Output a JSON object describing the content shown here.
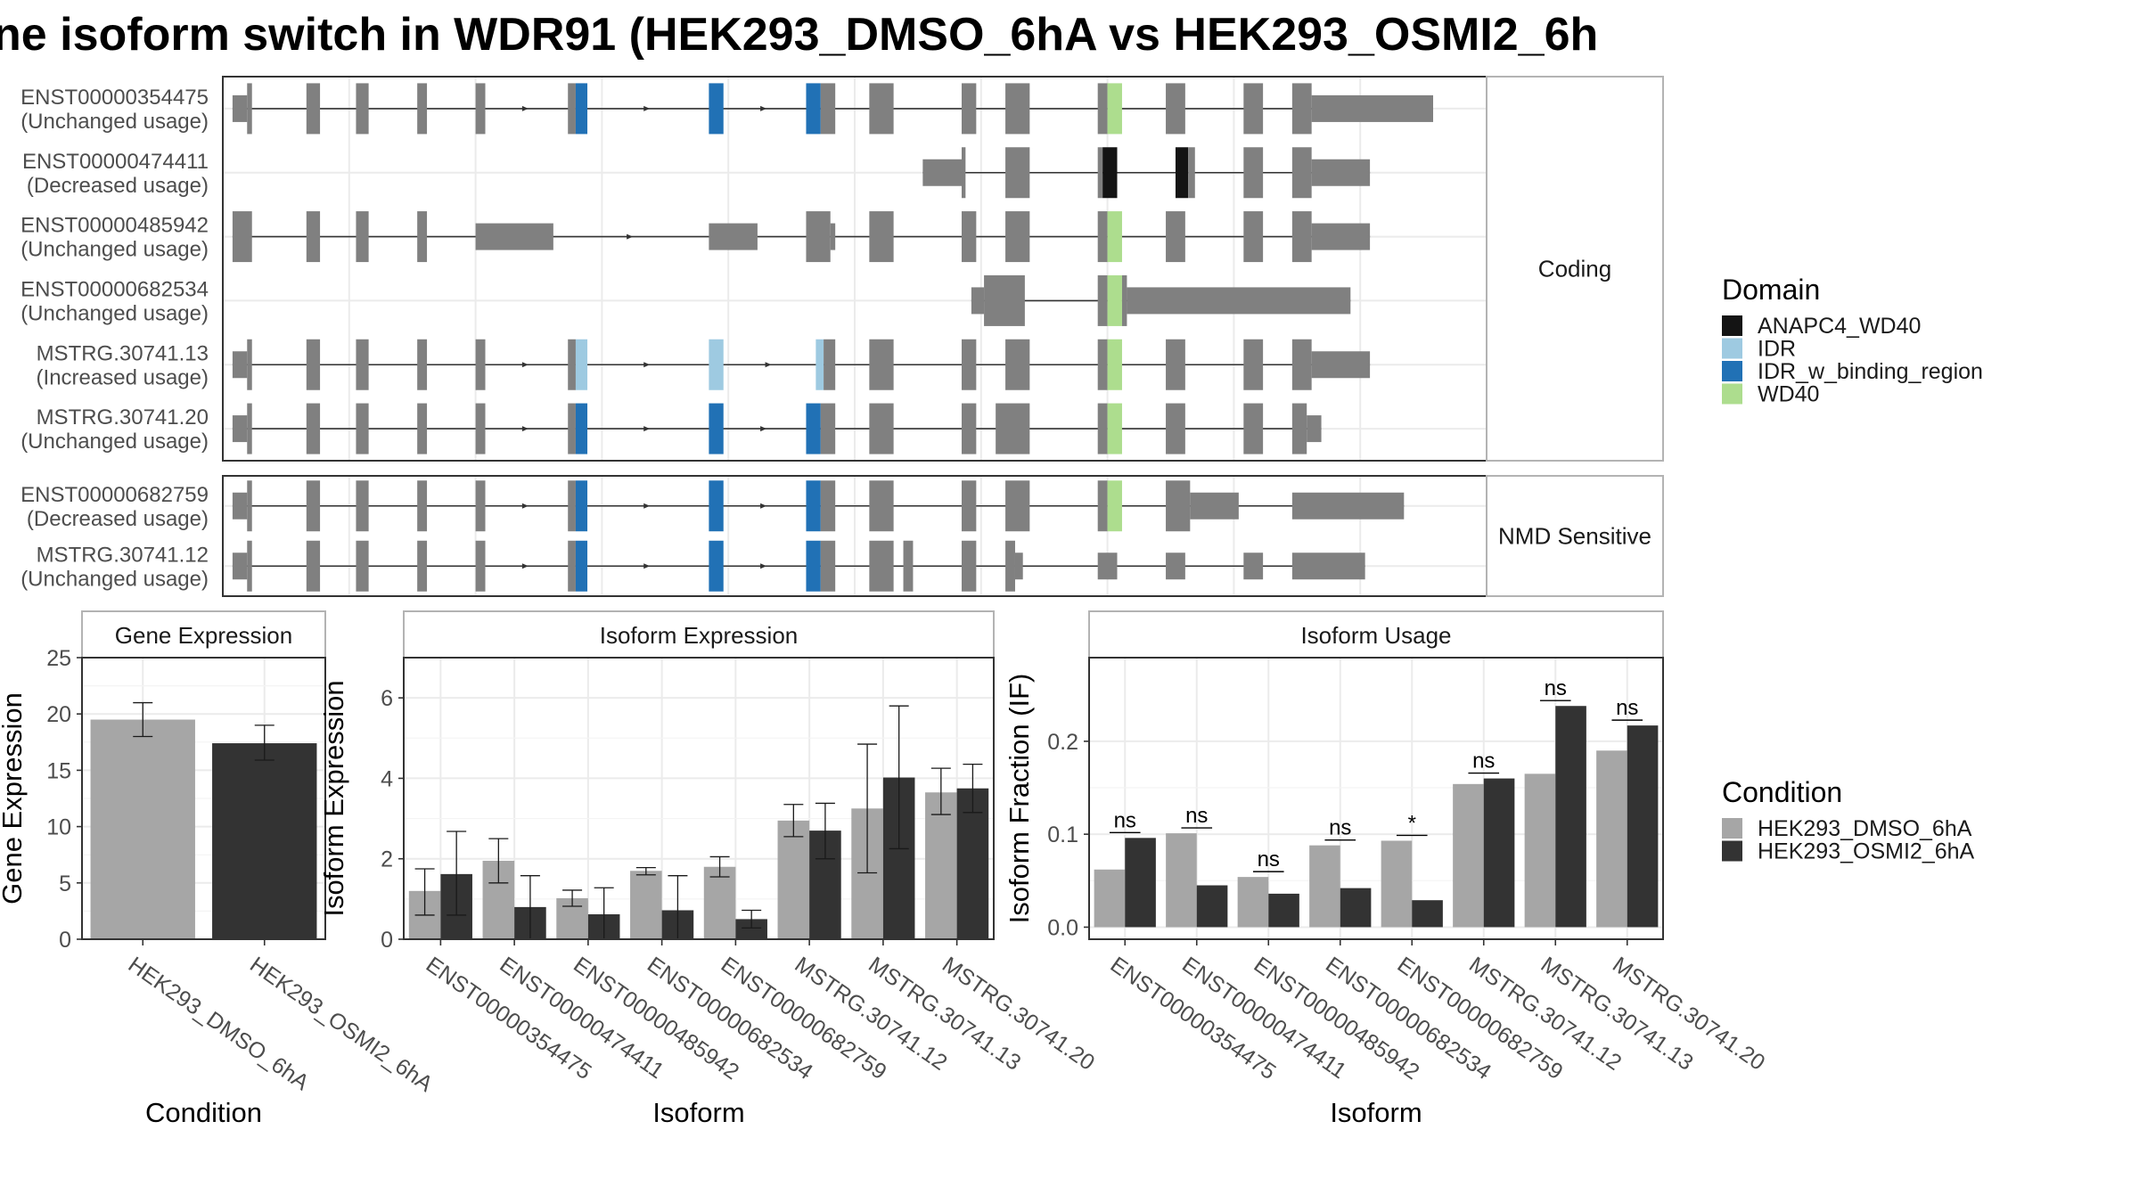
{
  "title": "ne isoform switch in WDR91 (HEK293_DMSO_6hA vs HEK293_OSMI2_6h",
  "colors": {
    "exon": "#808080",
    "intron": "#333333",
    "grid": "#ebebeb",
    "panel_border": "#333333",
    "strip_border": "#b3b3b3",
    "dmso": "#a6a6a6",
    "osmi2": "#333333",
    "ANAPC4_WD40": "#141414",
    "IDR": "#9ecae1",
    "IDR_w_binding_region": "#2171b5",
    "WD40": "#addd8e"
  },
  "transcripts": {
    "groups": [
      {
        "name": "Coding",
        "isoforms": [
          {
            "id": "ENST00000354475",
            "usage": "(Unchanged usage)",
            "exons": [
              [
                1,
                2.5,
                "utr"
              ],
              [
                2.5,
                3,
                "cds"
              ],
              [
                8.6,
                10,
                "cds"
              ],
              [
                13.7,
                15,
                "cds"
              ],
              [
                20,
                21,
                "cds"
              ],
              [
                26,
                27,
                "cds"
              ],
              [
                35.5,
                36.3,
                "cds"
              ],
              [
                36.3,
                37.5,
                "IDR_w_binding_region"
              ],
              [
                50,
                51.5,
                "IDR_w_binding_region"
              ],
              [
                60,
                61.5,
                "IDR_w_binding_region"
              ],
              [
                61.5,
                63,
                "cds"
              ],
              [
                66.5,
                69,
                "cds"
              ],
              [
                76,
                77.5,
                "cds"
              ],
              [
                80.5,
                83,
                "cds"
              ],
              [
                90,
                91,
                "cds"
              ],
              [
                91,
                92.5,
                "WD40"
              ],
              [
                97,
                99,
                "cds"
              ],
              [
                105,
                107,
                "cds"
              ],
              [
                110,
                112,
                "cds"
              ],
              [
                112,
                124.5,
                "utr"
              ]
            ]
          },
          {
            "id": "ENST00000474411",
            "usage": "(Decreased usage)",
            "exons": [
              [
                72,
                76,
                "utr"
              ],
              [
                76,
                76.4,
                "cds"
              ],
              [
                80.5,
                83,
                "cds"
              ],
              [
                90,
                90.5,
                "cds"
              ],
              [
                90.5,
                92,
                "ANAPC4_WD40"
              ],
              [
                98,
                99.3,
                "ANAPC4_WD40"
              ],
              [
                99.3,
                100,
                "cds"
              ],
              [
                105,
                107,
                "cds"
              ],
              [
                110,
                112,
                "cds"
              ],
              [
                112,
                118,
                "utr"
              ]
            ]
          },
          {
            "id": "ENST00000485942",
            "usage": "(Unchanged usage)",
            "exons": [
              [
                1,
                3,
                "cds"
              ],
              [
                8.6,
                10,
                "cds"
              ],
              [
                13.7,
                15,
                "cds"
              ],
              [
                20,
                21,
                "cds"
              ],
              [
                26,
                34,
                "utr"
              ],
              [
                50,
                55,
                "utr"
              ],
              [
                60,
                62.5,
                "cds"
              ],
              [
                62.5,
                63,
                "utr"
              ],
              [
                66.5,
                69,
                "cds"
              ],
              [
                76,
                77.5,
                "cds"
              ],
              [
                80.5,
                83,
                "cds"
              ],
              [
                90,
                91,
                "cds"
              ],
              [
                91,
                92.5,
                "WD40"
              ],
              [
                97,
                99,
                "cds"
              ],
              [
                105,
                107,
                "cds"
              ],
              [
                110,
                112,
                "cds"
              ],
              [
                112,
                118,
                "utr"
              ]
            ]
          },
          {
            "id": "ENST00000682534",
            "usage": "(Unchanged usage)",
            "exons": [
              [
                77,
                78.3,
                "utr"
              ],
              [
                78.3,
                82.5,
                "cds"
              ],
              [
                90,
                91,
                "cds"
              ],
              [
                91,
                92.5,
                "WD40"
              ],
              [
                92.5,
                93,
                "cds"
              ],
              [
                93,
                116,
                "utr"
              ]
            ]
          },
          {
            "id": "MSTRG.30741.13",
            "usage": "(Increased usage)",
            "exons": [
              [
                1,
                2.5,
                "utr"
              ],
              [
                2.5,
                3,
                "cds"
              ],
              [
                8.6,
                10,
                "cds"
              ],
              [
                13.7,
                15,
                "cds"
              ],
              [
                20,
                21,
                "cds"
              ],
              [
                26,
                27,
                "cds"
              ],
              [
                35.5,
                36.3,
                "cds"
              ],
              [
                36.3,
                37.5,
                "IDR"
              ],
              [
                50,
                51.5,
                "IDR"
              ],
              [
                61,
                61.8,
                "IDR"
              ],
              [
                61.8,
                63,
                "cds"
              ],
              [
                66.5,
                69,
                "cds"
              ],
              [
                76,
                77.5,
                "cds"
              ],
              [
                80.5,
                83,
                "cds"
              ],
              [
                90,
                91,
                "cds"
              ],
              [
                91,
                92.5,
                "WD40"
              ],
              [
                97,
                99,
                "cds"
              ],
              [
                105,
                107,
                "cds"
              ],
              [
                110,
                112,
                "cds"
              ],
              [
                112,
                118,
                "utr"
              ]
            ]
          },
          {
            "id": "MSTRG.30741.20",
            "usage": "(Unchanged usage)",
            "exons": [
              [
                1,
                2.5,
                "utr"
              ],
              [
                2.5,
                3,
                "cds"
              ],
              [
                8.6,
                10,
                "cds"
              ],
              [
                13.7,
                15,
                "cds"
              ],
              [
                20,
                21,
                "cds"
              ],
              [
                26,
                27,
                "cds"
              ],
              [
                35.5,
                36.3,
                "cds"
              ],
              [
                36.3,
                37.5,
                "IDR_w_binding_region"
              ],
              [
                50,
                51.5,
                "IDR_w_binding_region"
              ],
              [
                60,
                61.5,
                "IDR_w_binding_region"
              ],
              [
                61.5,
                63,
                "cds"
              ],
              [
                66.5,
                69,
                "cds"
              ],
              [
                76,
                77.5,
                "cds"
              ],
              [
                79.5,
                83,
                "cds"
              ],
              [
                90,
                91,
                "cds"
              ],
              [
                91,
                92.5,
                "WD40"
              ],
              [
                97,
                99,
                "cds"
              ],
              [
                105,
                107,
                "cds"
              ],
              [
                110,
                111.5,
                "cds"
              ],
              [
                111.5,
                113,
                "utr"
              ]
            ]
          }
        ]
      },
      {
        "name": "NMD Sensitive",
        "isoforms": [
          {
            "id": "ENST00000682759",
            "usage": "(Decreased usage)",
            "exons": [
              [
                1,
                2.5,
                "utr"
              ],
              [
                2.5,
                3,
                "cds"
              ],
              [
                8.6,
                10,
                "cds"
              ],
              [
                13.7,
                15,
                "cds"
              ],
              [
                20,
                21,
                "cds"
              ],
              [
                26,
                27,
                "cds"
              ],
              [
                35.5,
                36.3,
                "cds"
              ],
              [
                36.3,
                37.5,
                "IDR_w_binding_region"
              ],
              [
                50,
                51.5,
                "IDR_w_binding_region"
              ],
              [
                60,
                61.5,
                "IDR_w_binding_region"
              ],
              [
                61.5,
                63,
                "cds"
              ],
              [
                66.5,
                69,
                "cds"
              ],
              [
                76,
                77.5,
                "cds"
              ],
              [
                80.5,
                83,
                "cds"
              ],
              [
                90,
                91,
                "cds"
              ],
              [
                91,
                92.5,
                "WD40"
              ],
              [
                97,
                99.5,
                "cds"
              ],
              [
                99.5,
                104.5,
                "utr"
              ],
              [
                110,
                121.5,
                "utr"
              ]
            ]
          },
          {
            "id": "MSTRG.30741.12",
            "usage": "(Unchanged usage)",
            "exons": [
              [
                1,
                2.5,
                "utr"
              ],
              [
                2.5,
                3,
                "cds"
              ],
              [
                8.6,
                10,
                "cds"
              ],
              [
                13.7,
                15,
                "cds"
              ],
              [
                20,
                21,
                "cds"
              ],
              [
                26,
                27,
                "cds"
              ],
              [
                35.5,
                36.3,
                "cds"
              ],
              [
                36.3,
                37.5,
                "IDR_w_binding_region"
              ],
              [
                50,
                51.5,
                "IDR_w_binding_region"
              ],
              [
                60,
                61.5,
                "IDR_w_binding_region"
              ],
              [
                61.5,
                63,
                "cds"
              ],
              [
                66.5,
                69,
                "cds"
              ],
              [
                70,
                71,
                "cds"
              ],
              [
                76,
                77.5,
                "cds"
              ],
              [
                80.5,
                81.5,
                "cds"
              ],
              [
                81.5,
                82.3,
                "utr"
              ],
              [
                90,
                92,
                "utr"
              ],
              [
                97,
                99,
                "utr"
              ],
              [
                105,
                107,
                "utr"
              ],
              [
                110,
                117.5,
                "utr"
              ]
            ]
          }
        ]
      }
    ]
  },
  "legend_domain": {
    "title": "Domain",
    "items": [
      {
        "label": "ANAPC4_WD40",
        "key": "ANAPC4_WD40"
      },
      {
        "label": "IDR",
        "key": "IDR"
      },
      {
        "label": "IDR_w_binding_region",
        "key": "IDR_w_binding_region"
      },
      {
        "label": "WD40",
        "key": "WD40"
      }
    ]
  },
  "legend_condition": {
    "title": "Condition",
    "items": [
      {
        "label": "HEK293_DMSO_6hA",
        "key": "dmso"
      },
      {
        "label": "HEK293_OSMI2_6hA",
        "key": "osmi2"
      }
    ]
  },
  "chart_data": [
    {
      "type": "bar",
      "title": "Gene Expression",
      "ylabel": "Gene Expression",
      "xlabel": "Condition",
      "ylim": [
        0,
        25
      ],
      "yticks": [
        0,
        5,
        10,
        15,
        20,
        25
      ],
      "categories": [
        "HEK293_DMSO_6hA",
        "HEK293_OSMI2_6hA"
      ],
      "values": [
        19.5,
        17.4
      ],
      "errors": [
        [
          18.0,
          21.0
        ],
        [
          15.9,
          19.0
        ]
      ]
    },
    {
      "type": "bar",
      "title": "Isoform Expression",
      "ylabel": "Isoform Expression",
      "xlabel": "Isoform",
      "ylim": [
        0,
        7
      ],
      "yticks": [
        0,
        2,
        4,
        6
      ],
      "categories": [
        "ENST00000354475",
        "ENST00000474411",
        "ENST00000485942",
        "ENST00000682534",
        "ENST00000682759",
        "MSTRG.30741.12",
        "MSTRG.30741.13",
        "MSTRG.30741.20"
      ],
      "series": [
        {
          "name": "HEK293_DMSO_6hA",
          "values": [
            1.2,
            1.95,
            1.02,
            1.7,
            1.8,
            2.95,
            3.25,
            3.65
          ],
          "errors": [
            [
              0.6,
              1.75
            ],
            [
              1.4,
              2.5
            ],
            [
              0.82,
              1.22
            ],
            [
              1.6,
              1.78
            ],
            [
              1.55,
              2.05
            ],
            [
              2.55,
              3.35
            ],
            [
              1.65,
              4.85
            ],
            [
              3.1,
              4.25
            ]
          ]
        },
        {
          "name": "HEK293_OSMI2_6hA",
          "values": [
            1.62,
            0.8,
            0.62,
            0.72,
            0.5,
            2.7,
            4.02,
            3.75
          ],
          "errors": [
            [
              0.6,
              2.68
            ],
            [
              0.0,
              1.58
            ],
            [
              0.0,
              1.28
            ],
            [
              0.0,
              1.58
            ],
            [
              0.28,
              0.72
            ],
            [
              2.0,
              3.38
            ],
            [
              2.25,
              5.8
            ],
            [
              3.15,
              4.35
            ]
          ]
        }
      ]
    },
    {
      "type": "bar",
      "title": "Isoform Usage",
      "ylabel": "Isoform Fraction (IF)",
      "xlabel": "Isoform",
      "ylim": [
        -0.013,
        0.29
      ],
      "yticks": [
        0.0,
        0.1,
        0.2
      ],
      "ytick_labels": [
        "0.0",
        "0.1",
        "0.2"
      ],
      "categories": [
        "ENST00000354475",
        "ENST00000474411",
        "ENST00000485942",
        "ENST00000682534",
        "ENST00000682759",
        "MSTRG.30741.12",
        "MSTRG.30741.13",
        "MSTRG.30741.20"
      ],
      "series": [
        {
          "name": "HEK293_DMSO_6hA",
          "values": [
            0.062,
            0.101,
            0.054,
            0.088,
            0.093,
            0.154,
            0.165,
            0.19
          ]
        },
        {
          "name": "HEK293_OSMI2_6hA",
          "values": [
            0.096,
            0.045,
            0.036,
            0.042,
            0.029,
            0.16,
            0.238,
            0.217
          ]
        }
      ],
      "significance": [
        "ns",
        "ns",
        "ns",
        "ns",
        "*",
        "ns",
        "ns",
        "ns"
      ]
    }
  ]
}
